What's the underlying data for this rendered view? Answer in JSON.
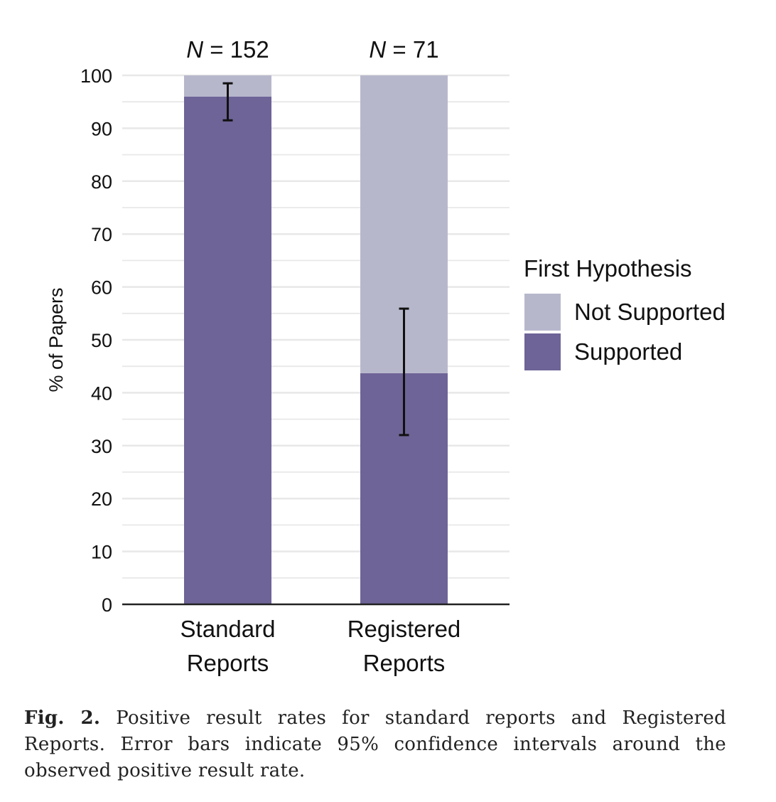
{
  "chart_data": {
    "type": "bar",
    "stacked": true,
    "categories": [
      "Standard\nReports",
      "Registered\nReports"
    ],
    "category_lines": [
      [
        "Standard",
        "Reports"
      ],
      [
        "Registered",
        "Reports"
      ]
    ],
    "n_labels": [
      "N = 152",
      "N = 71"
    ],
    "n_label_parts": [
      {
        "var": "N",
        "rest": " = 152"
      },
      {
        "var": "N",
        "rest": " = 71"
      }
    ],
    "series": [
      {
        "name": "Supported",
        "values": [
          96.0,
          43.7
        ],
        "color": "#6e6497"
      },
      {
        "name": "Not Supported",
        "values": [
          4.0,
          56.3
        ],
        "color": "#b7b7cc"
      }
    ],
    "error_bars": [
      {
        "low": 91.5,
        "high": 98.5
      },
      {
        "low": 32.0,
        "high": 55.9
      }
    ],
    "ylabel": "% of Papers",
    "xlabel": "",
    "ylim": [
      0,
      100
    ],
    "yticks": [
      0,
      10,
      20,
      30,
      40,
      50,
      60,
      70,
      80,
      90,
      100
    ],
    "grid": true,
    "legend": {
      "title": "First Hypothesis",
      "placement": "right",
      "entries": [
        "Not Supported",
        "Supported"
      ]
    }
  },
  "caption": {
    "label": "Fig. 2.",
    "text": " Positive result rates for standard reports and Registered Reports. Error bars indicate 95% confidence intervals around the observed positive result rate."
  }
}
